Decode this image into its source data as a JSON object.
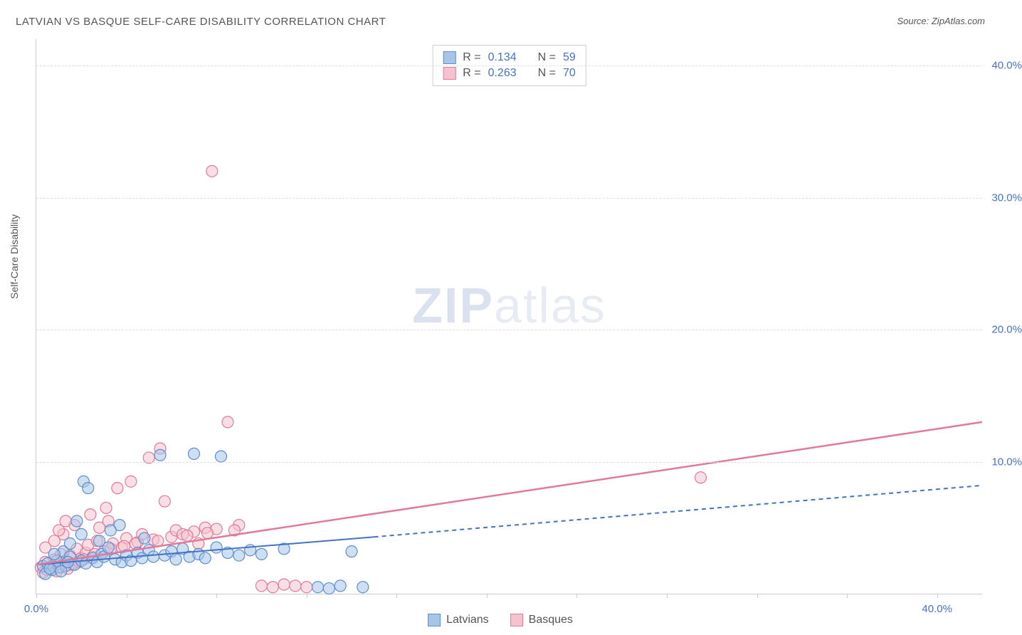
{
  "title": "LATVIAN VS BASQUE SELF-CARE DISABILITY CORRELATION CHART",
  "source": "Source: ZipAtlas.com",
  "ylabel": "Self-Care Disability",
  "watermark": {
    "bold": "ZIP",
    "light": "atlas"
  },
  "chart": {
    "type": "scatter",
    "xlim": [
      0,
      42
    ],
    "ylim": [
      0,
      42
    ],
    "background_color": "#ffffff",
    "grid_color": "#dddddd",
    "axis_color": "#cccccc",
    "tick_label_color": "#4472c4",
    "y_ticks": [
      10,
      20,
      30,
      40
    ],
    "y_tick_labels": [
      "10.0%",
      "20.0%",
      "30.0%",
      "40.0%"
    ],
    "x_ticks": [
      0,
      4,
      8,
      12,
      16,
      20,
      24,
      28,
      32,
      36,
      40
    ],
    "x_tick_labels_shown": {
      "0": "0.0%",
      "40": "40.0%"
    },
    "marker_radius": 8,
    "marker_opacity": 0.55,
    "series": [
      {
        "name": "Latvians",
        "color_fill": "#a8c5e8",
        "color_stroke": "#5b8fd0",
        "r_value": "0.134",
        "n_value": "59",
        "trend_line": {
          "x1": 0,
          "y1": 2.2,
          "x2": 15,
          "y2": 4.3,
          "x2_dash": 42,
          "y2_dash": 8.2,
          "color": "#4472c4",
          "width": 2
        },
        "points": [
          [
            0.3,
            2.1
          ],
          [
            0.5,
            2.3
          ],
          [
            0.7,
            1.8
          ],
          [
            0.9,
            2.5
          ],
          [
            1.0,
            2.0
          ],
          [
            1.2,
            3.2
          ],
          [
            1.3,
            2.1
          ],
          [
            1.5,
            2.8
          ],
          [
            1.7,
            2.2
          ],
          [
            1.8,
            5.5
          ],
          [
            2.0,
            2.5
          ],
          [
            2.1,
            8.5
          ],
          [
            2.2,
            2.3
          ],
          [
            2.3,
            8.0
          ],
          [
            2.5,
            2.7
          ],
          [
            2.7,
            2.4
          ],
          [
            2.9,
            3.0
          ],
          [
            3.0,
            2.8
          ],
          [
            3.2,
            3.5
          ],
          [
            3.5,
            2.6
          ],
          [
            3.7,
            5.2
          ],
          [
            3.8,
            2.4
          ],
          [
            4.0,
            2.9
          ],
          [
            4.2,
            2.5
          ],
          [
            4.5,
            3.1
          ],
          [
            4.7,
            2.7
          ],
          [
            5.0,
            3.3
          ],
          [
            5.2,
            2.8
          ],
          [
            5.5,
            10.5
          ],
          [
            5.7,
            2.9
          ],
          [
            6.0,
            3.2
          ],
          [
            6.2,
            2.6
          ],
          [
            6.5,
            3.4
          ],
          [
            6.8,
            2.8
          ],
          [
            7.0,
            10.6
          ],
          [
            7.2,
            3.0
          ],
          [
            7.5,
            2.7
          ],
          [
            8.0,
            3.5
          ],
          [
            8.2,
            10.4
          ],
          [
            8.5,
            3.1
          ],
          [
            9.0,
            2.9
          ],
          [
            9.5,
            3.3
          ],
          [
            10.0,
            3.0
          ],
          [
            11.0,
            3.4
          ],
          [
            12.5,
            0.5
          ],
          [
            13.0,
            0.4
          ],
          [
            13.5,
            0.6
          ],
          [
            14.0,
            3.2
          ],
          [
            14.5,
            0.5
          ],
          [
            1.5,
            3.8
          ],
          [
            2.0,
            4.5
          ],
          [
            2.8,
            4.0
          ],
          [
            3.3,
            4.8
          ],
          [
            4.8,
            4.2
          ],
          [
            0.4,
            1.5
          ],
          [
            0.6,
            1.9
          ],
          [
            1.1,
            1.7
          ],
          [
            1.4,
            2.4
          ],
          [
            0.8,
            3.0
          ]
        ]
      },
      {
        "name": "Basques",
        "color_fill": "#f5c2d0",
        "color_stroke": "#e07a9a",
        "r_value": "0.263",
        "n_value": "70",
        "trend_line": {
          "x1": 0,
          "y1": 2.2,
          "x2": 42,
          "y2": 13.0,
          "color": "#e07a9a",
          "width": 2.5
        },
        "points": [
          [
            0.2,
            2.0
          ],
          [
            0.4,
            2.4
          ],
          [
            0.6,
            1.9
          ],
          [
            0.8,
            2.6
          ],
          [
            1.0,
            2.2
          ],
          [
            1.1,
            3.0
          ],
          [
            1.3,
            2.5
          ],
          [
            1.5,
            2.9
          ],
          [
            1.6,
            2.3
          ],
          [
            1.8,
            3.4
          ],
          [
            2.0,
            2.7
          ],
          [
            2.2,
            3.1
          ],
          [
            2.3,
            3.7
          ],
          [
            2.5,
            2.8
          ],
          [
            2.7,
            4.0
          ],
          [
            2.8,
            5.0
          ],
          [
            3.0,
            3.2
          ],
          [
            3.2,
            5.5
          ],
          [
            3.4,
            3.8
          ],
          [
            3.6,
            8.0
          ],
          [
            3.8,
            3.5
          ],
          [
            4.0,
            4.2
          ],
          [
            4.2,
            8.5
          ],
          [
            4.5,
            3.9
          ],
          [
            4.7,
            4.5
          ],
          [
            5.0,
            10.3
          ],
          [
            5.2,
            4.1
          ],
          [
            5.5,
            11.0
          ],
          [
            5.7,
            7.0
          ],
          [
            6.0,
            4.3
          ],
          [
            6.2,
            4.8
          ],
          [
            6.5,
            4.5
          ],
          [
            7.0,
            4.7
          ],
          [
            7.2,
            3.8
          ],
          [
            7.5,
            5.0
          ],
          [
            7.8,
            32.0
          ],
          [
            8.0,
            4.9
          ],
          [
            8.5,
            13.0
          ],
          [
            9.0,
            5.2
          ],
          [
            10.0,
            0.6
          ],
          [
            10.5,
            0.5
          ],
          [
            11.0,
            0.7
          ],
          [
            11.5,
            0.6
          ],
          [
            12.0,
            0.5
          ],
          [
            29.5,
            8.8
          ],
          [
            1.2,
            4.5
          ],
          [
            1.7,
            5.2
          ],
          [
            2.4,
            6.0
          ],
          [
            3.1,
            6.5
          ],
          [
            0.3,
            1.6
          ],
          [
            0.5,
            1.8
          ],
          [
            0.7,
            2.1
          ],
          [
            0.9,
            1.7
          ],
          [
            1.1,
            2.0
          ],
          [
            1.4,
            1.9
          ],
          [
            1.6,
            2.2
          ],
          [
            1.9,
            2.4
          ],
          [
            2.1,
            2.6
          ],
          [
            2.6,
            3.0
          ],
          [
            3.3,
            3.4
          ],
          [
            3.9,
            3.6
          ],
          [
            4.4,
            3.8
          ],
          [
            5.4,
            4.0
          ],
          [
            6.7,
            4.4
          ],
          [
            7.6,
            4.6
          ],
          [
            8.8,
            4.8
          ],
          [
            0.4,
            3.5
          ],
          [
            0.8,
            4.0
          ],
          [
            1.0,
            4.8
          ],
          [
            1.3,
            5.5
          ]
        ]
      }
    ]
  },
  "legend_stats": [
    {
      "r_label": "R =",
      "r_val": "0.134",
      "n_label": "N =",
      "n_val": "59"
    },
    {
      "r_label": "R =",
      "r_val": "0.263",
      "n_label": "N =",
      "n_val": "70"
    }
  ],
  "legend_bottom": [
    {
      "label": "Latvians"
    },
    {
      "label": "Basques"
    }
  ]
}
